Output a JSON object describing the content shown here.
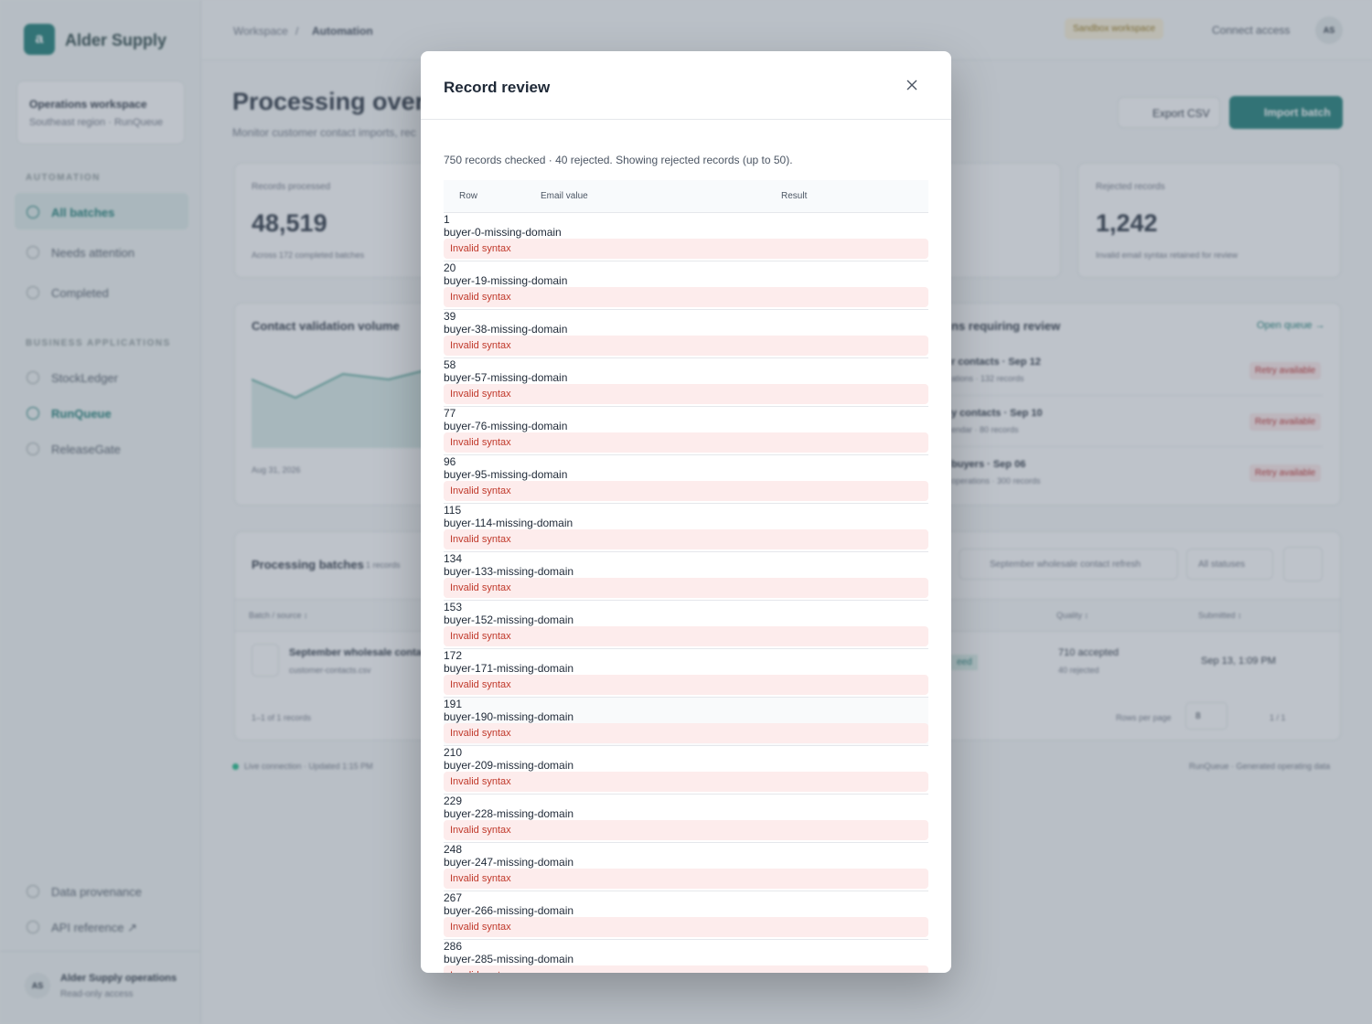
{
  "sidebar": {
    "brand_initial": "a",
    "brand": "Alder Supply",
    "workspace_title": "Operations workspace",
    "workspace_sub": "Southeast region · RunQueue",
    "section_automation": "AUTOMATION",
    "nav_automation": [
      "All batches",
      "Needs attention",
      "Completed"
    ],
    "section_apps": "BUSINESS APPLICATIONS",
    "nav_apps": [
      "StockLedger",
      "RunQueue",
      "ReleaseGate"
    ],
    "footer_links": [
      "Data provenance",
      "API reference ↗"
    ],
    "user": {
      "initials": "AS",
      "name": "Alder Supply operations",
      "role": "Read-only access"
    }
  },
  "topbar": {
    "breadcrumb": [
      "Workspace",
      "Automation"
    ],
    "separator": "/",
    "badge": "Sandbox workspace",
    "connect": "Connect access",
    "avatar": "AS"
  },
  "overview": {
    "title": "Processing overvi",
    "subtitle": "Monitor customer contact imports, rec",
    "export": "Export CSV",
    "import": "Import batch",
    "stats": [
      {
        "label": "Records processed",
        "value": "48,519",
        "note": "Across 172 completed batches"
      },
      {
        "label": "Rejected records",
        "value": "1,242",
        "note": "Invalid email syntax retained for review"
      }
    ],
    "volume_card": {
      "title": "Contact validation volume",
      "date": "Aug 31, 2026"
    },
    "review_card": {
      "title": "ns requiring review",
      "link": "Open queue →",
      "items": [
        {
          "name": "r contacts · Sep 12",
          "meta": "ations · 132 records",
          "status": "Retry available"
        },
        {
          "name": "y contacts · Sep 10",
          "meta": "endar · 80 records",
          "status": "Retry available"
        },
        {
          "name": "buyers · Sep 06",
          "meta": "operations · 300 records",
          "status": "Retry available"
        }
      ]
    },
    "batches": {
      "title": "Processing batches",
      "count": "1 records",
      "search": "September wholesale contact refresh",
      "filter": "All statuses",
      "headers": [
        "Batch / source ↕",
        "Quality ↕",
        "Submitted ↕"
      ],
      "row": {
        "name": "September wholesale contac",
        "file": "customer-contacts.csv",
        "status": "eed",
        "accepted": "710 accepted",
        "rejected": "40 rejected",
        "submitted": "Sep 13, 1:09 PM"
      },
      "range": "1–1 of 1 records",
      "rows_per_page": "Rows per page",
      "page_size": "8",
      "pages": "1 / 1"
    },
    "footer_left": "Live connection · Updated 1:15 PM",
    "footer_right": "RunQueue · Generated operating data"
  },
  "modal": {
    "title": "Record review",
    "summary": "750 records checked · 40 rejected. Showing rejected records (up to 50).",
    "columns": [
      "Row",
      "Email value",
      "Result"
    ],
    "rows": [
      [
        1,
        "buyer-0-missing-domain",
        "Invalid syntax"
      ],
      [
        20,
        "buyer-19-missing-domain",
        "Invalid syntax"
      ],
      [
        39,
        "buyer-38-missing-domain",
        "Invalid syntax"
      ],
      [
        58,
        "buyer-57-missing-domain",
        "Invalid syntax"
      ],
      [
        77,
        "buyer-76-missing-domain",
        "Invalid syntax"
      ],
      [
        96,
        "buyer-95-missing-domain",
        "Invalid syntax"
      ],
      [
        115,
        "buyer-114-missing-domain",
        "Invalid syntax"
      ],
      [
        134,
        "buyer-133-missing-domain",
        "Invalid syntax"
      ],
      [
        153,
        "buyer-152-missing-domain",
        "Invalid syntax"
      ],
      [
        172,
        "buyer-171-missing-domain",
        "Invalid syntax"
      ],
      [
        191,
        "buyer-190-missing-domain",
        "Invalid syntax"
      ],
      [
        210,
        "buyer-209-missing-domain",
        "Invalid syntax"
      ],
      [
        229,
        "buyer-228-missing-domain",
        "Invalid syntax"
      ],
      [
        248,
        "buyer-247-missing-domain",
        "Invalid syntax"
      ],
      [
        267,
        "buyer-266-missing-domain",
        "Invalid syntax"
      ],
      [
        286,
        "buyer-285-missing-domain",
        "Invalid syntax"
      ]
    ]
  }
}
